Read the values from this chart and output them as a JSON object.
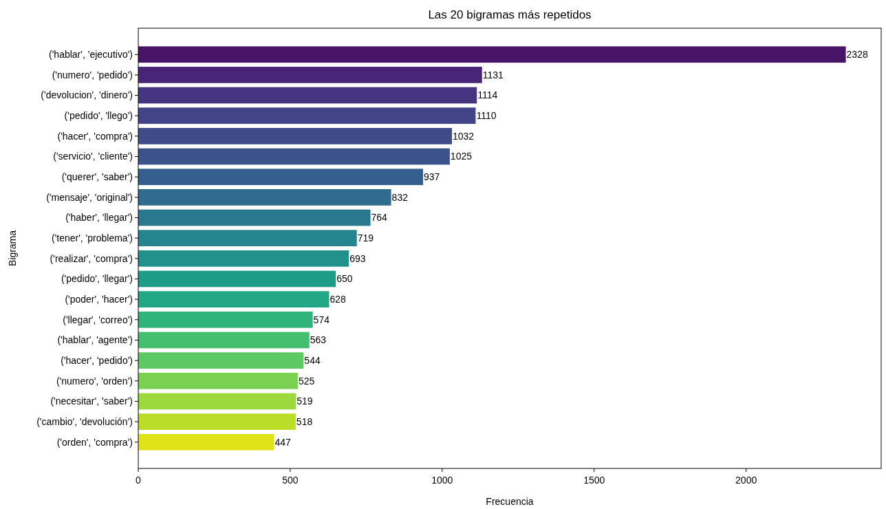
{
  "chart_data": {
    "type": "bar",
    "orientation": "horizontal",
    "title": "Las 20 bigramas más repetidos",
    "xlabel": "Frecuencia",
    "ylabel": "Bigrama",
    "categories": [
      "('hablar', 'ejecutivo')",
      "('numero', 'pedido')",
      "('devolucion', 'dinero')",
      "('pedido', 'llego')",
      "('hacer', 'compra')",
      "('servicio', 'cliente')",
      "('querer', 'saber')",
      "('mensaje', 'original')",
      "('haber', 'llegar')",
      "('tener', 'problema')",
      "('realizar', 'compra')",
      "('pedido', 'llegar')",
      "('poder', 'hacer')",
      "('llegar', 'correo')",
      "('hablar', 'agente')",
      "('hacer', 'pedido')",
      "('numero', 'orden')",
      "('necesitar', 'saber')",
      "('cambio', 'devolución')",
      "('orden', 'compra')"
    ],
    "values": [
      2328,
      1131,
      1114,
      1110,
      1032,
      1025,
      937,
      832,
      764,
      719,
      693,
      650,
      628,
      574,
      563,
      544,
      525,
      519,
      518,
      447
    ],
    "colors": [
      "#481467",
      "#482576",
      "#463480",
      "#414487",
      "#3e4c8a",
      "#3b528b",
      "#355f8d",
      "#2f6c8e",
      "#2a788e",
      "#25848e",
      "#21918c",
      "#1e9c89",
      "#22a884",
      "#2fb47c",
      "#44bf70",
      "#5ec962",
      "#7ad151",
      "#9bd93c",
      "#bade28",
      "#dfe318"
    ],
    "xlim": [
      0,
      2444.4
    ],
    "xticks": [
      0,
      500,
      1000,
      1500,
      2000
    ],
    "data_labels": true
  }
}
